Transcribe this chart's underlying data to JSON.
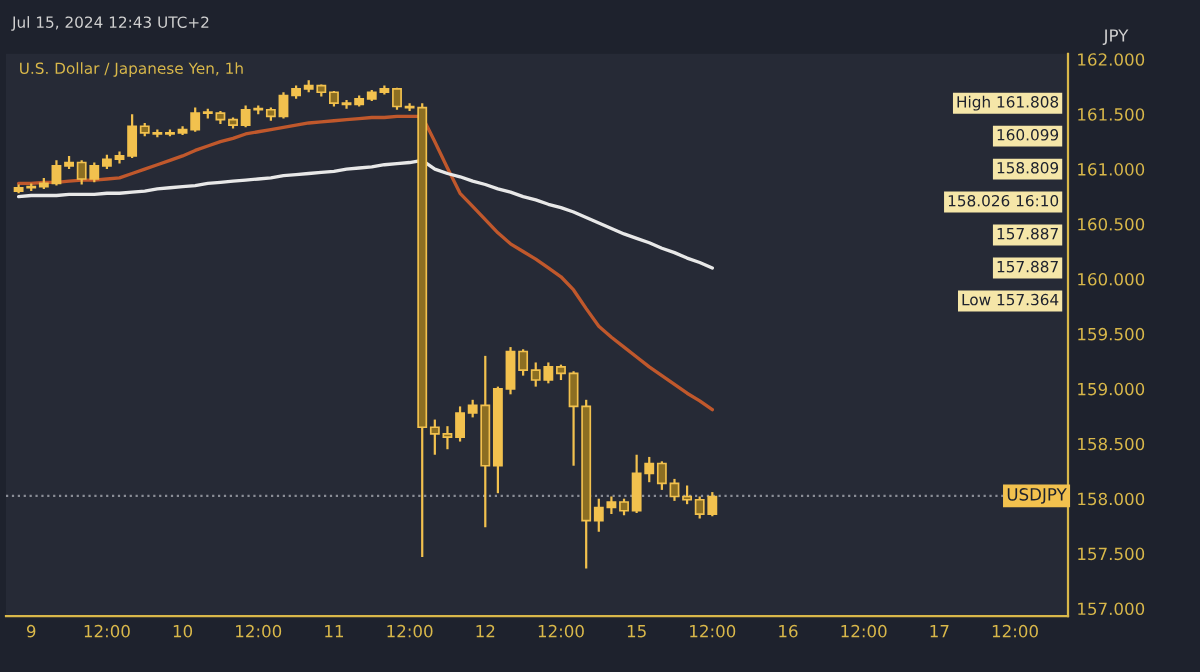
{
  "chart_data": {
    "type": "candlestick",
    "title": "U.S. Dollar / Japanese Yen, 1h",
    "subtitle": "Jul 15, 2024 12:43 UTC+2",
    "ylabel": "JPY",
    "categories": [
      null,
      "9",
      null,
      null,
      null,
      null,
      null,
      "12:00",
      null,
      null,
      null,
      null,
      null,
      "10",
      null,
      null,
      null,
      null,
      null,
      "12:00",
      null,
      null,
      null,
      null,
      null,
      "11",
      null,
      null,
      null,
      null,
      null,
      "12:00",
      null,
      null,
      null,
      null,
      null,
      "12",
      null,
      null,
      null,
      null,
      null,
      "12:00",
      null,
      null,
      null,
      null,
      null,
      "15",
      null,
      null,
      null,
      null,
      null,
      "12:00",
      null,
      null,
      null,
      null,
      null,
      "16",
      null,
      null,
      null,
      null,
      null,
      "12:00",
      null,
      null,
      null,
      null,
      null,
      "17",
      null,
      null,
      null,
      null,
      null,
      "12:00",
      null,
      null,
      null,
      null
    ],
    "series": [
      {
        "color": "#f2c14e",
        "ohlc": [
          [
            160.8,
            160.86,
            160.78,
            160.83
          ],
          [
            160.83,
            160.87,
            160.8,
            160.84
          ],
          [
            160.84,
            160.92,
            160.82,
            160.87
          ],
          [
            160.87,
            161.08,
            160.85,
            161.03
          ],
          [
            161.03,
            161.12,
            161.0,
            161.06
          ],
          [
            161.06,
            161.08,
            160.86,
            160.91
          ],
          [
            160.91,
            161.06,
            160.88,
            161.03
          ],
          [
            161.03,
            161.13,
            161.0,
            161.09
          ],
          [
            161.09,
            161.16,
            161.05,
            161.12
          ],
          [
            161.12,
            161.5,
            161.1,
            161.39
          ],
          [
            161.39,
            161.42,
            161.3,
            161.33
          ],
          [
            161.33,
            161.36,
            161.29,
            161.32
          ],
          [
            161.32,
            161.36,
            161.3,
            161.33
          ],
          [
            161.33,
            161.39,
            161.31,
            161.36
          ],
          [
            161.36,
            161.56,
            161.34,
            161.51
          ],
          [
            161.51,
            161.55,
            161.46,
            161.51
          ],
          [
            161.51,
            161.53,
            161.41,
            161.45
          ],
          [
            161.45,
            161.47,
            161.37,
            161.4
          ],
          [
            161.4,
            161.58,
            161.38,
            161.54
          ],
          [
            161.54,
            161.58,
            161.5,
            161.54
          ],
          [
            161.54,
            161.56,
            161.44,
            161.48
          ],
          [
            161.48,
            161.7,
            161.46,
            161.67
          ],
          [
            161.67,
            161.76,
            161.64,
            161.73
          ],
          [
            161.73,
            161.808,
            161.7,
            161.76
          ],
          [
            161.76,
            161.77,
            161.66,
            161.7
          ],
          [
            161.7,
            161.71,
            161.57,
            161.6
          ],
          [
            161.6,
            161.63,
            161.55,
            161.59
          ],
          [
            161.59,
            161.67,
            161.57,
            161.64
          ],
          [
            161.64,
            161.72,
            161.62,
            161.7
          ],
          [
            161.7,
            161.76,
            161.68,
            161.73
          ],
          [
            161.73,
            161.74,
            161.54,
            161.57
          ],
          [
            161.57,
            161.6,
            161.53,
            161.56
          ],
          [
            161.56,
            161.6,
            157.47,
            158.65
          ],
          [
            158.65,
            158.72,
            158.4,
            158.59
          ],
          [
            158.59,
            158.66,
            158.45,
            158.56
          ],
          [
            158.56,
            158.84,
            158.52,
            158.78
          ],
          [
            158.78,
            158.9,
            158.74,
            158.85
          ],
          [
            158.85,
            159.3,
            157.74,
            158.3
          ],
          [
            158.3,
            159.02,
            158.05,
            159.0
          ],
          [
            159.0,
            159.38,
            158.95,
            159.34
          ],
          [
            159.34,
            159.36,
            159.12,
            159.17
          ],
          [
            159.17,
            159.24,
            159.02,
            159.08
          ],
          [
            159.08,
            159.24,
            159.05,
            159.2
          ],
          [
            159.2,
            159.22,
            159.08,
            159.14
          ],
          [
            159.14,
            159.16,
            158.3,
            158.84
          ],
          [
            158.84,
            158.9,
            157.364,
            157.8
          ],
          [
            157.8,
            158.0,
            157.7,
            157.92
          ],
          [
            157.92,
            158.02,
            157.86,
            157.97
          ],
          [
            157.97,
            158.0,
            157.85,
            157.89
          ],
          [
            157.89,
            158.4,
            157.87,
            158.23
          ],
          [
            158.23,
            158.38,
            158.15,
            158.32
          ],
          [
            158.32,
            158.34,
            158.08,
            158.14
          ],
          [
            158.14,
            158.18,
            157.98,
            158.02
          ],
          [
            158.02,
            158.12,
            157.95,
            157.99
          ],
          [
            157.99,
            158.02,
            157.82,
            157.86
          ],
          [
            157.86,
            158.06,
            157.84,
            158.02
          ],
          null,
          null,
          null,
          null,
          null,
          null,
          null,
          null,
          null,
          null,
          null,
          null,
          null,
          null,
          null,
          null,
          null,
          null,
          null,
          null,
          null,
          null,
          null,
          null,
          null,
          null,
          null,
          null
        ]
      },
      {
        "type": "line",
        "color": "#c0582c",
        "values": [
          160.87,
          160.87,
          160.88,
          160.88,
          160.89,
          160.9,
          160.9,
          160.91,
          160.92,
          160.96,
          161.0,
          161.04,
          161.08,
          161.12,
          161.17,
          161.21,
          161.25,
          161.28,
          161.32,
          161.34,
          161.36,
          161.38,
          161.4,
          161.42,
          161.43,
          161.44,
          161.45,
          161.46,
          161.47,
          161.47,
          161.48,
          161.48,
          161.48,
          161.25,
          161.01,
          160.78,
          160.66,
          160.54,
          160.42,
          160.32,
          160.25,
          160.18,
          160.1,
          160.02,
          159.9,
          159.73,
          159.57,
          159.47,
          159.38,
          159.29,
          159.2,
          159.12,
          159.04,
          158.96,
          158.89,
          158.81,
          null,
          null,
          null,
          null,
          null,
          null,
          null,
          null,
          null,
          null,
          null,
          null,
          null,
          null,
          null,
          null,
          null,
          null,
          null,
          null,
          null,
          null,
          null,
          null,
          null,
          null,
          null,
          null
        ]
      },
      {
        "type": "line",
        "color": "#e8e8e8",
        "values": [
          160.75,
          160.76,
          160.76,
          160.76,
          160.77,
          160.77,
          160.77,
          160.78,
          160.78,
          160.79,
          160.8,
          160.82,
          160.83,
          160.84,
          160.85,
          160.87,
          160.88,
          160.89,
          160.9,
          160.91,
          160.92,
          160.94,
          160.95,
          160.96,
          160.97,
          160.98,
          161.0,
          161.01,
          161.02,
          161.04,
          161.05,
          161.06,
          161.08,
          161.0,
          160.96,
          160.93,
          160.89,
          160.86,
          160.82,
          160.79,
          160.75,
          160.72,
          160.68,
          160.65,
          160.61,
          160.56,
          160.51,
          160.46,
          160.41,
          160.37,
          160.33,
          160.28,
          160.24,
          160.19,
          160.15,
          160.1,
          null,
          null,
          null,
          null,
          null,
          null,
          null,
          null,
          null,
          null,
          null,
          null,
          null,
          null,
          null,
          null,
          null,
          null,
          null,
          null,
          null,
          null,
          null,
          null,
          null,
          null,
          null,
          null
        ]
      }
    ],
    "ylim": [
      156.93,
      162.05
    ],
    "yticks": [
      {
        "value": 157,
        "label": "157.000"
      },
      {
        "value": 157.5,
        "label": "157.500"
      },
      {
        "value": 158,
        "label": "158.000"
      },
      {
        "value": 158.5,
        "label": "158.500"
      },
      {
        "value": 159,
        "label": "159.000"
      },
      {
        "value": 159.5,
        "label": "159.500"
      },
      {
        "value": 160,
        "label": "160.000"
      },
      {
        "value": 160.5,
        "label": "160.500"
      },
      {
        "value": 161,
        "label": "161.000"
      },
      {
        "value": 161.5,
        "label": "161.500"
      },
      {
        "value": 162,
        "label": "162.000"
      }
    ],
    "grid": false,
    "ref_lines": [
      {
        "axis": "y",
        "value": 158.026,
        "label": "USDJPY",
        "color": "#8a8d96",
        "line_style": "dotted"
      }
    ],
    "annotations": [
      "High 161.808",
      "160.099",
      "158.809",
      "158.026 16:10",
      "157.887",
      "157.887",
      "Low 157.364"
    ]
  }
}
